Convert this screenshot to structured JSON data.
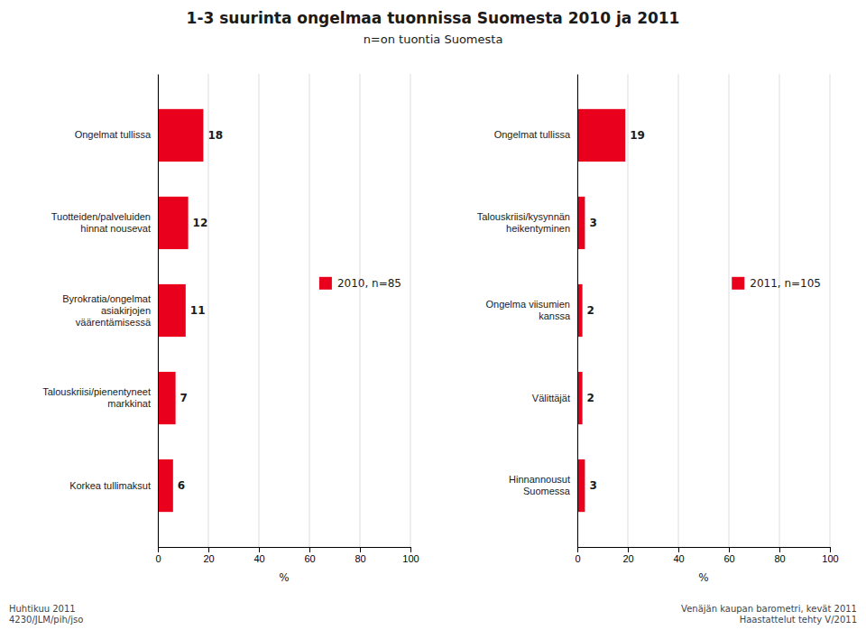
{
  "chart_data": [
    {
      "type": "bar",
      "orientation": "horizontal",
      "title": "1-3 suurinta ongelmaa tuonnissa Suomesta 2010 ja 2011",
      "subtitle": "n=on tuontia Suomesta",
      "categories": [
        "Ongelmat tullissa",
        "Tuotteiden/palveluiden\nhinnat nousevat",
        "Byrokratia/ongelmat\nasiakirjojen\nväärentämisessä",
        "Talouskriisi/pienentyneet\nmarkkinat",
        "Korkea tullimaksut"
      ],
      "series": [
        {
          "name": "2010, n=85",
          "color": "#e8001c",
          "values": [
            18,
            12,
            11,
            7,
            6
          ]
        }
      ],
      "x_label": "%",
      "xlim": [
        0,
        100
      ],
      "xticks": [
        0,
        20,
        40,
        60,
        80,
        100
      ],
      "grid": true,
      "legend": "right",
      "data_labels": true,
      "annotations": [
        "Huhtikuu 2011\n4230/JLM/pih/jso",
        "Venäjän kaupan barometri, kevät 2011\nHaastattelut tehty V/2011"
      ]
    },
    {
      "type": "bar",
      "orientation": "horizontal",
      "categories": [
        "Ongelmat tullissa",
        "Talouskriisi/kysynnän\nheikentyminen",
        "Ongelma viisumien\nkanssa",
        "Välittäjät",
        "Hinnannousut\nSuomessa"
      ],
      "series": [
        {
          "name": "2011, n=105",
          "color": "#e8001c",
          "values": [
            19,
            3,
            2,
            2,
            3
          ]
        }
      ],
      "x_label": "%",
      "xlim": [
        0,
        100
      ],
      "xticks": [
        0,
        20,
        40,
        60,
        80,
        100
      ],
      "grid": true,
      "legend": "right",
      "data_labels": true
    }
  ]
}
